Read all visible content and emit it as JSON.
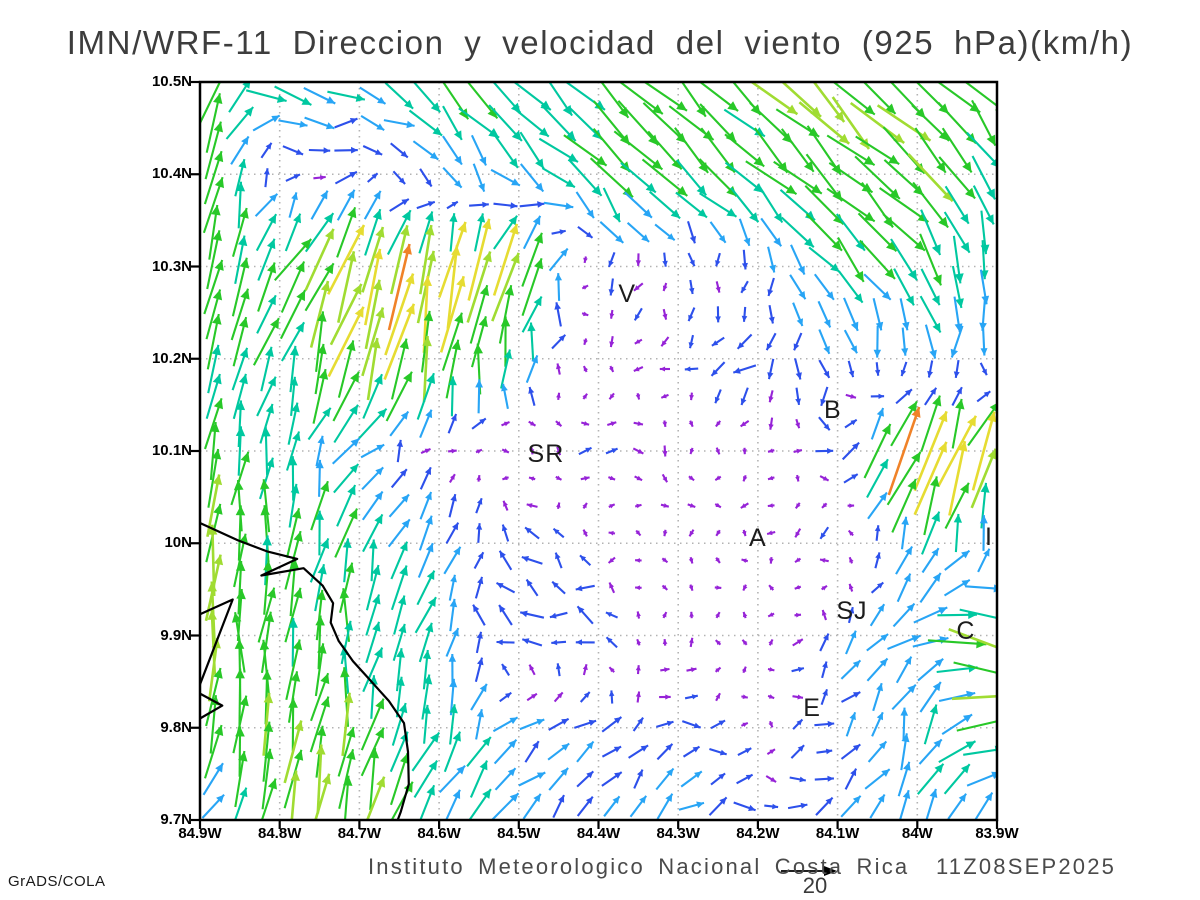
{
  "title": "IMN/WRF-11 Direccion y velocidad del viento (925 hPa)(km/h)",
  "footer": {
    "caption": "Instituto Meteorologico Nacional Costa Rica  11Z08SEP2025",
    "stamp": "GrADS/COLA"
  },
  "chart_data": {
    "type": "quiver",
    "title": "IMN/WRF-11 Direccion y velocidad del viento (925 hPa)(km/h)",
    "variable": "wind direction and speed",
    "level": "925 hPa",
    "units": "km/h",
    "valid_time": "11Z08SEP2025",
    "source": "Instituto Meteorologico Nacional Costa Rica",
    "x_range": [
      -84.9,
      -83.9
    ],
    "y_range": [
      9.7,
      10.5
    ],
    "x_tick_labels": [
      "84.9W",
      "84.8W",
      "84.7W",
      "84.6W",
      "84.5W",
      "84.4W",
      "84.3W",
      "84.2W",
      "84.1W",
      "84W",
      "83.9W"
    ],
    "y_tick_labels": [
      "10.5N",
      "10.4N",
      "10.3N",
      "10.2N",
      "10.1N",
      "10N",
      "9.9N",
      "9.8N",
      "9.7N"
    ],
    "grid_on": true,
    "legend_position": "none",
    "reference_vector": {
      "label": "20",
      "value": 20,
      "units": "km/h"
    },
    "speed_colors": [
      "#9623d7",
      "#2d50eb",
      "#28a5f5",
      "#00c8a0",
      "#28c828",
      "#a0dc32",
      "#e6dc32",
      "#f08228",
      "#f54137"
    ],
    "speed_thresholds_kmh": [
      5,
      10,
      15,
      20,
      25,
      30,
      35,
      40
    ],
    "wind_grid": {
      "lons": [
        -84.9,
        -84.8,
        -84.7,
        -84.6,
        -84.5,
        -84.4,
        -84.3,
        -84.2,
        -84.1,
        -84.0,
        -83.9
      ],
      "lats_top_to_bottom": [
        10.5,
        10.4,
        10.3,
        10.2,
        10.1,
        10.0,
        9.9,
        9.8,
        9.7
      ],
      "u_kmh": [
        [
          8,
          20,
          14,
          16,
          16,
          16,
          16,
          16,
          17,
          17,
          17
        ],
        [
          5,
          2,
          7,
          5,
          10,
          15,
          16,
          16,
          16,
          18,
          6
        ],
        [
          3,
          14,
          10,
          6,
          8,
          0,
          -2,
          0,
          13,
          10,
          2
        ],
        [
          2,
          4,
          8,
          4,
          3,
          -2,
          -3,
          -6,
          0,
          -2,
          -2
        ],
        [
          4,
          3,
          8,
          2,
          1,
          7,
          2,
          -2,
          8,
          15,
          10
        ],
        [
          3,
          2,
          5,
          8,
          -7,
          -3,
          2,
          -2,
          -6,
          6,
          2
        ],
        [
          0,
          2,
          2,
          5,
          -9,
          -8,
          3,
          -2,
          6,
          14,
          28
        ],
        [
          2,
          3,
          4,
          6,
          8,
          7,
          8,
          3,
          7,
          4,
          24
        ],
        [
          8,
          4,
          6,
          10,
          10,
          3,
          9,
          8,
          8,
          8,
          3
        ]
      ],
      "v_kmh": [
        [
          34,
          -10,
          -2,
          -14,
          -16,
          -16,
          -16,
          -16,
          -17,
          -17,
          -17
        ],
        [
          26,
          3,
          4,
          -12,
          -10,
          -15,
          -15,
          -15,
          -15,
          -16,
          -18
        ],
        [
          24,
          16,
          30,
          34,
          30,
          -7,
          -4,
          -8,
          -13,
          -18,
          -14
        ],
        [
          22,
          18,
          28,
          26,
          15,
          -3,
          -3,
          -7,
          -9,
          -12,
          -10
        ],
        [
          22,
          16,
          10,
          3,
          -3,
          0,
          -3,
          -2,
          -2,
          38,
          28
        ],
        [
          26,
          22,
          20,
          10,
          7,
          2,
          -2,
          -3,
          -2,
          14,
          10
        ],
        [
          24,
          22,
          18,
          16,
          1,
          2,
          2,
          2,
          6,
          6,
          -16
        ],
        [
          24,
          24,
          22,
          16,
          8,
          5,
          2,
          -2,
          5,
          16,
          2
        ],
        [
          6,
          26,
          24,
          14,
          10,
          10,
          9,
          0,
          6,
          12,
          14
        ]
      ]
    },
    "stations": [
      {
        "label": "V",
        "lon": -84.364,
        "lat": 10.268
      },
      {
        "label": "B",
        "lon": -84.106,
        "lat": 10.142
      },
      {
        "label": "SR",
        "lon": -84.466,
        "lat": 10.095
      },
      {
        "label": "A",
        "lon": -84.2,
        "lat": 10.003
      },
      {
        "label": "I",
        "lon": -83.91,
        "lat": 10.005
      },
      {
        "label": "SJ",
        "lon": -84.082,
        "lat": 9.924
      },
      {
        "label": "C",
        "lon": -83.939,
        "lat": 9.903
      },
      {
        "label": "E",
        "lon": -84.132,
        "lat": 9.819
      }
    ],
    "coastlines": [
      [
        [
          -84.9,
          10.022
        ],
        [
          -84.852,
          10.003
        ],
        [
          -84.815,
          9.991
        ],
        [
          -84.778,
          9.983
        ],
        [
          -84.823,
          9.965
        ],
        [
          -84.77,
          9.973
        ],
        [
          -84.746,
          9.954
        ],
        [
          -84.733,
          9.935
        ],
        [
          -84.736,
          9.914
        ],
        [
          -84.726,
          9.894
        ],
        [
          -84.708,
          9.872
        ],
        [
          -84.688,
          9.853
        ],
        [
          -84.663,
          9.829
        ],
        [
          -84.644,
          9.805
        ],
        [
          -84.639,
          9.774
        ],
        [
          -84.638,
          9.739
        ],
        [
          -84.648,
          9.709
        ],
        [
          -84.652,
          9.7
        ]
      ],
      [
        [
          -84.9,
          9.923
        ],
        [
          -84.859,
          9.939
        ],
        [
          -84.9,
          9.847
        ]
      ],
      [
        [
          -84.9,
          9.837
        ],
        [
          -84.872,
          9.824
        ],
        [
          -84.9,
          9.81
        ]
      ]
    ]
  }
}
